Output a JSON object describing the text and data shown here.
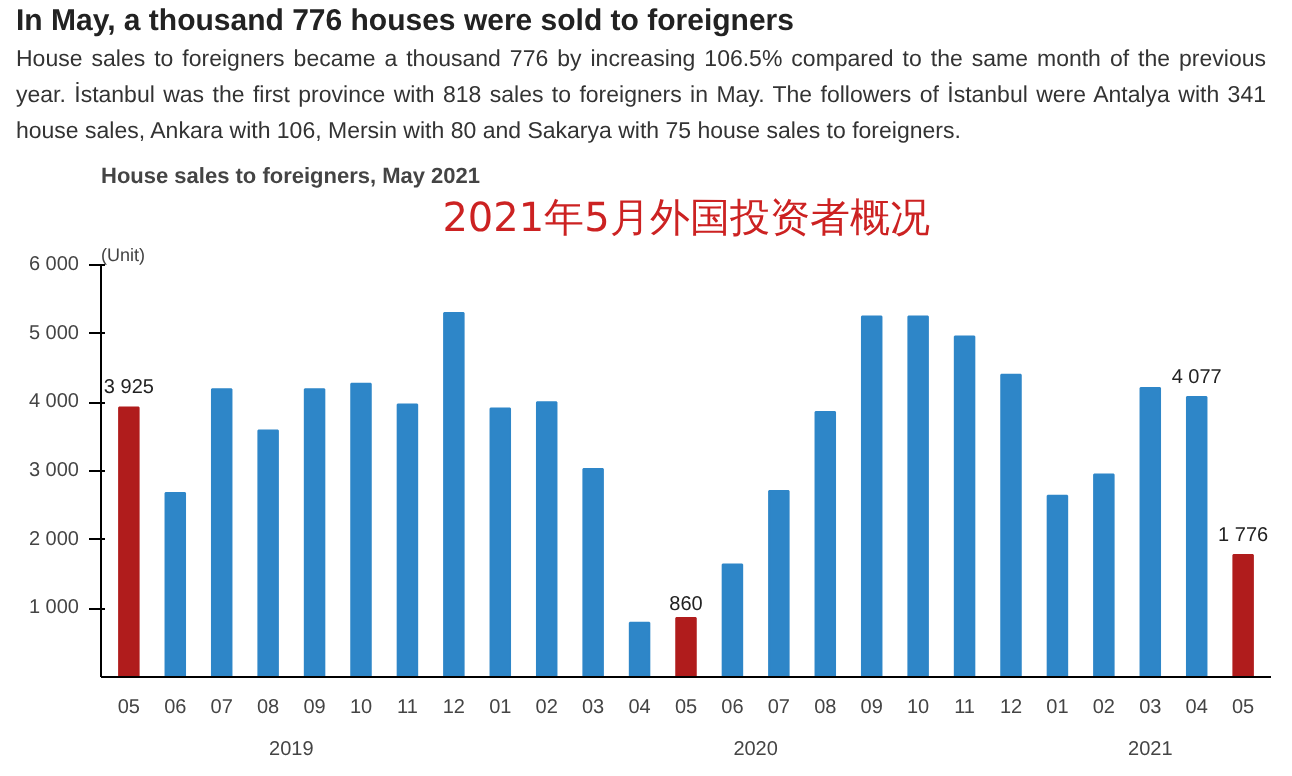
{
  "chart_data": {
    "type": "bar",
    "title": "In May, a thousand 776 houses were sold to foreigners",
    "subtitle": "House sales to foreigners became a thousand 776 by increasing 106.5% compared to the same month of the previous year. İstanbul was the first province with 818 sales to foreigners in May. The followers of İstanbul were Antalya with 341 house sales, Ankara with 106, Mersin with 80 and Sakarya with 75 house sales to foreigners.",
    "annotations": [
      "House sales to foreigners, May 2021",
      "2021年5月外国投资者概况",
      "2019",
      "2020",
      "2021"
    ],
    "ylabel": "(Unit)",
    "categories": [
      "05",
      "06",
      "07",
      "08",
      "09",
      "10",
      "11",
      "12",
      "01",
      "02",
      "03",
      "04",
      "05",
      "06",
      "07",
      "08",
      "09",
      "10",
      "11",
      "12",
      "01",
      "02",
      "03",
      "04",
      "05"
    ],
    "values": [
      3925,
      2680,
      4190,
      3590,
      4190,
      4270,
      3970,
      5300,
      3910,
      4000,
      3030,
      790,
      860,
      1640,
      2710,
      3860,
      5250,
      5250,
      4960,
      4400,
      2640,
      2950,
      4210,
      4077,
      1776
    ],
    "colors": [
      "#b01c1c",
      "#2e86c8",
      "#2e86c8",
      "#2e86c8",
      "#2e86c8",
      "#2e86c8",
      "#2e86c8",
      "#2e86c8",
      "#2e86c8",
      "#2e86c8",
      "#2e86c8",
      "#2e86c8",
      "#b01c1c",
      "#2e86c8",
      "#2e86c8",
      "#2e86c8",
      "#2e86c8",
      "#2e86c8",
      "#2e86c8",
      "#2e86c8",
      "#2e86c8",
      "#2e86c8",
      "#2e86c8",
      "#2e86c8",
      "#b01c1c"
    ],
    "value_labels": [
      "3 925",
      null,
      null,
      null,
      null,
      null,
      null,
      null,
      null,
      null,
      null,
      null,
      "860",
      null,
      null,
      null,
      null,
      null,
      null,
      null,
      null,
      null,
      null,
      "4 077",
      "1 776"
    ],
    "ylim": [
      0,
      6000
    ],
    "yticks": [
      {
        "value": 1000,
        "label": "1 000"
      },
      {
        "value": 2000,
        "label": "2 000"
      },
      {
        "value": 3000,
        "label": "3 000"
      },
      {
        "value": 4000,
        "label": "4 000"
      },
      {
        "value": 5000,
        "label": "5 000"
      },
      {
        "value": 6000,
        "label": "6 000"
      }
    ],
    "grid": false
  }
}
